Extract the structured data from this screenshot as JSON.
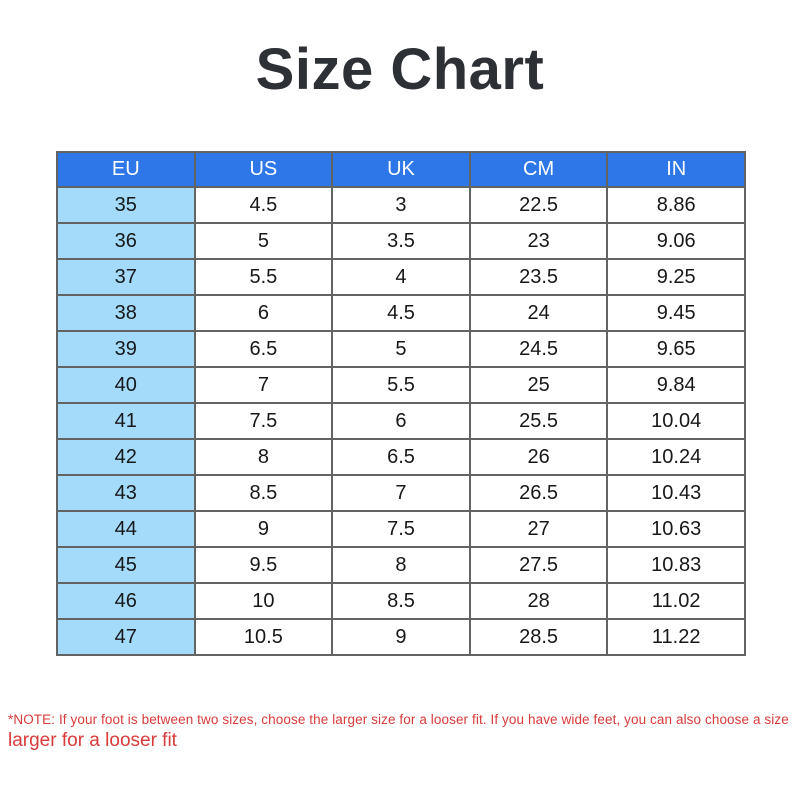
{
  "page_title": "Size Chart",
  "colors": {
    "header_bg": "#2e77e9",
    "header_text": "#ffffff",
    "eu_column_bg": "#a4dafa",
    "cell_bg": "#ffffff",
    "border": "#636363",
    "title_text": "#2d3035",
    "note_red": "#d93a3a"
  },
  "chart_data": {
    "type": "table",
    "title": "Size Chart",
    "columns": [
      "EU",
      "US",
      "UK",
      "CM",
      "IN"
    ],
    "rows": [
      {
        "eu": "35",
        "us": "4.5",
        "uk": "3",
        "cm": "22.5",
        "in": "8.86"
      },
      {
        "eu": "36",
        "us": "5",
        "uk": "3.5",
        "cm": "23",
        "in": "9.06"
      },
      {
        "eu": "37",
        "us": "5.5",
        "uk": "4",
        "cm": "23.5",
        "in": "9.25"
      },
      {
        "eu": "38",
        "us": "6",
        "uk": "4.5",
        "cm": "24",
        "in": "9.45"
      },
      {
        "eu": "39",
        "us": "6.5",
        "uk": "5",
        "cm": "24.5",
        "in": "9.65"
      },
      {
        "eu": "40",
        "us": "7",
        "uk": "5.5",
        "cm": "25",
        "in": "9.84"
      },
      {
        "eu": "41",
        "us": "7.5",
        "uk": "6",
        "cm": "25.5",
        "in": "10.04"
      },
      {
        "eu": "42",
        "us": "8",
        "uk": "6.5",
        "cm": "26",
        "in": "10.24"
      },
      {
        "eu": "43",
        "us": "8.5",
        "uk": "7",
        "cm": "26.5",
        "in": "10.43"
      },
      {
        "eu": "44",
        "us": "9",
        "uk": "7.5",
        "cm": "27",
        "in": "10.63"
      },
      {
        "eu": "45",
        "us": "9.5",
        "uk": "8",
        "cm": "27.5",
        "in": "10.83"
      },
      {
        "eu": "46",
        "us": "10",
        "uk": "8.5",
        "cm": "28",
        "in": "11.02"
      },
      {
        "eu": "47",
        "us": "10.5",
        "uk": "9",
        "cm": "28.5",
        "in": "11.22"
      }
    ]
  },
  "note": {
    "line1": "*NOTE: If your foot is between two sizes, choose the larger size for a looser fit. If you have wide feet, you can also choose a size",
    "line2": "larger for a looser fit"
  }
}
